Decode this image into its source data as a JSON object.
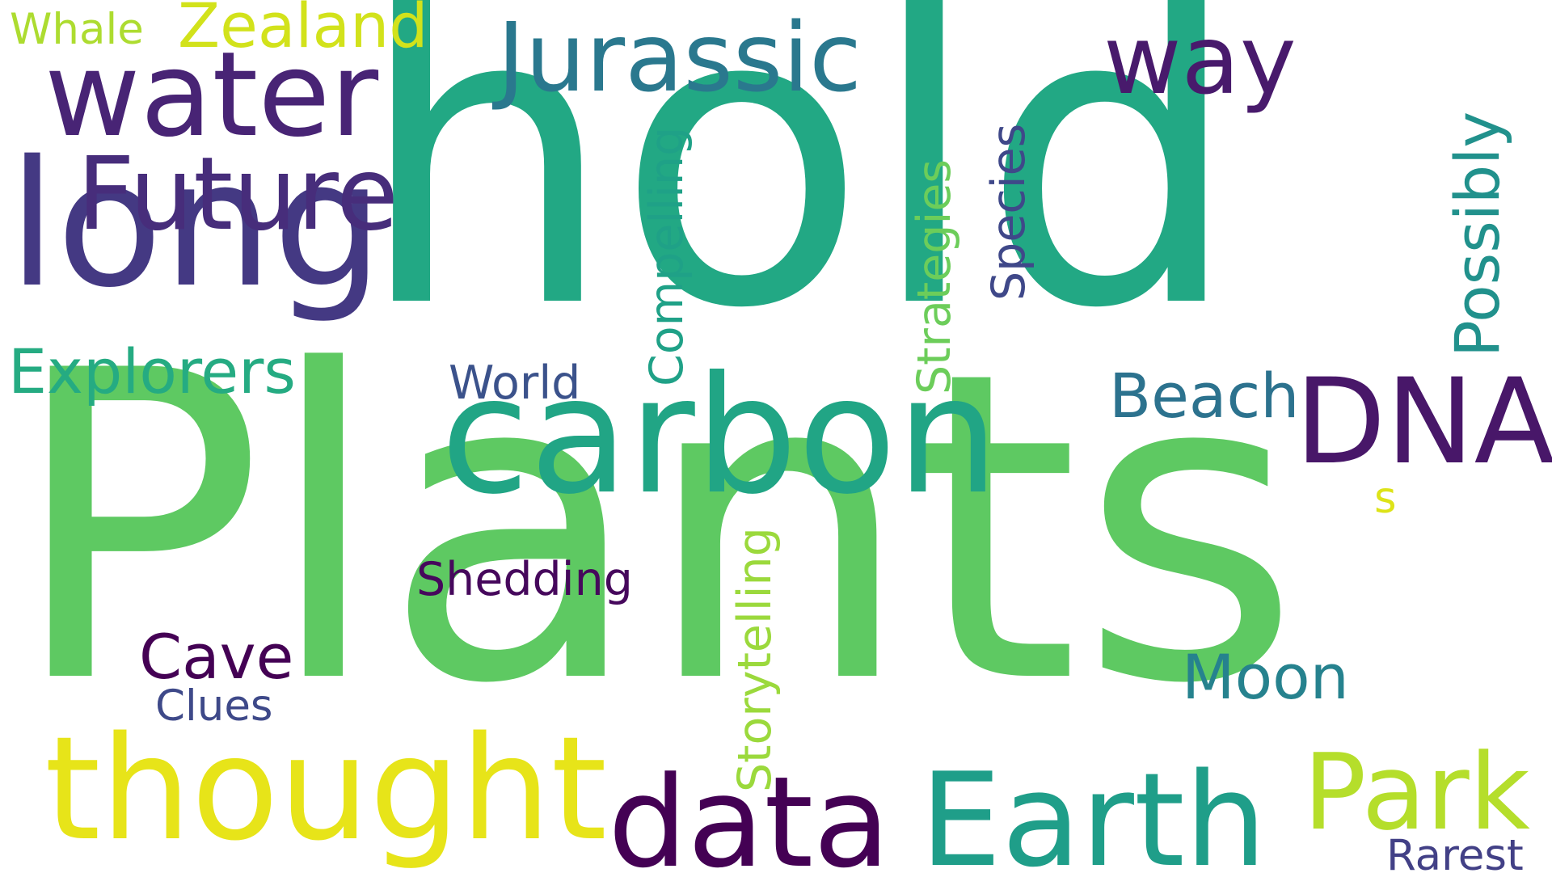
{
  "words": [
    {
      "text": "Plants",
      "color": "#5ec962"
    },
    {
      "text": "hold",
      "color": "#22a884"
    },
    {
      "text": "long",
      "color": "#443983"
    },
    {
      "text": "carbon",
      "color": "#21a585"
    },
    {
      "text": "thought",
      "color": "#e7e419"
    },
    {
      "text": "data",
      "color": "#440154"
    },
    {
      "text": "Earth",
      "color": "#1f9e89"
    },
    {
      "text": "Park",
      "color": "#b5de2b"
    },
    {
      "text": "DNA",
      "color": "#481769"
    },
    {
      "text": "water",
      "color": "#482475"
    },
    {
      "text": "Future",
      "color": "#472d7b"
    },
    {
      "text": "Jurassic",
      "color": "#2a788e"
    },
    {
      "text": "way",
      "color": "#481a6c"
    },
    {
      "text": "Zealand",
      "color": "#d2e21b"
    },
    {
      "text": "Whale",
      "color": "#addc30"
    },
    {
      "text": "Explorers",
      "color": "#25ab82"
    },
    {
      "text": "World",
      "color": "#3b528b"
    },
    {
      "text": "Beach",
      "color": "#2c728e"
    },
    {
      "text": "Shedding",
      "color": "#46085c"
    },
    {
      "text": "Cave",
      "color": "#440154"
    },
    {
      "text": "Clues",
      "color": "#3e4989"
    },
    {
      "text": "Moon",
      "color": "#26828e"
    },
    {
      "text": "Rarest",
      "color": "#424086"
    },
    {
      "text": "s",
      "color": "#dde318"
    },
    {
      "text": "Compelling",
      "color": "#1fa187"
    },
    {
      "text": "Strategies",
      "color": "#6ccd5a"
    },
    {
      "text": "Species",
      "color": "#3f4889"
    },
    {
      "text": "Possibly",
      "color": "#21918c"
    },
    {
      "text": "Storytelling",
      "color": "#9bd93c"
    }
  ]
}
